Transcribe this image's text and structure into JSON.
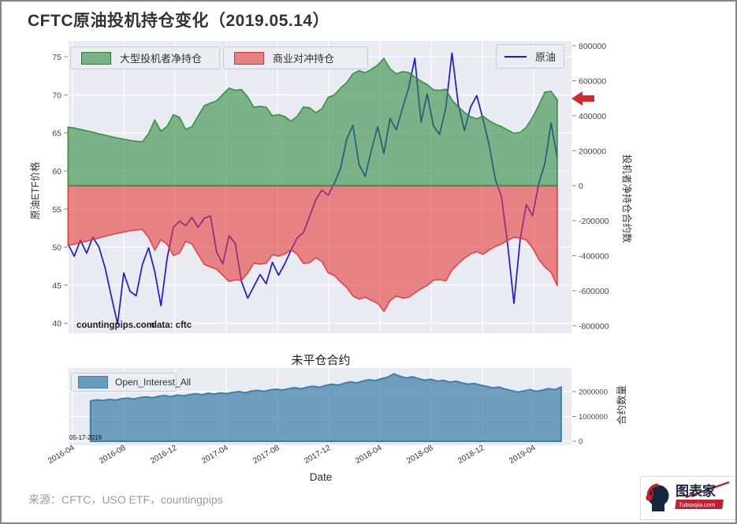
{
  "page": {
    "title": "CFTC原油投机持仓变化（2019.05.14）",
    "source_note": "来源：CFTC，USO ETF，countingpips"
  },
  "logo": {
    "brand": "图表家",
    "site": "Tubiaojia.com"
  },
  "colors": {
    "plot_bg": "#eaeaf2",
    "grid": "#ffffff",
    "spec_green": "#2e8b3e",
    "hedge_red": "#e23b3b",
    "oil_blue": "#1a1ad8",
    "oi_blue": "#3f7fa8",
    "arrow_red": "#d62a2a"
  },
  "chart_data": [
    {
      "id": "main",
      "type": "area+line",
      "x_tick_labels": [
        "2016-04",
        "2016-08",
        "2016-12",
        "2017-04",
        "2017-08",
        "2017-12",
        "2018-04",
        "2018-08",
        "2018-12",
        "2019-04"
      ],
      "x_tick_months": [
        0,
        4,
        8,
        12,
        16,
        20,
        24,
        28,
        32,
        36
      ],
      "left_axis": {
        "label": "原油ETF价格",
        "ticks": [
          75,
          70,
          65,
          60,
          55,
          50,
          45,
          40
        ],
        "range": [
          38.8,
          77.1
        ]
      },
      "right_axis": {
        "label": "投机者净持仓合约数",
        "ticks": [
          800000,
          600000,
          400000,
          200000,
          0,
          -200000,
          -400000,
          -600000,
          -800000
        ],
        "range": [
          -840000,
          830000
        ]
      },
      "annotations": [
        {
          "text": "countingpips.com"
        },
        {
          "text": "data: cftc"
        }
      ],
      "series": [
        {
          "name": "大型投机者净持仓",
          "type": "area",
          "axis": "right",
          "color": "#2e8b3e",
          "x0": -0.35,
          "dx": 0.4835,
          "values": [
            335000,
            330000,
            322000,
            314000,
            306000,
            297000,
            289000,
            280000,
            273000,
            266000,
            259000,
            254000,
            252000,
            298000,
            375000,
            312000,
            340000,
            406000,
            392000,
            322000,
            338000,
            398000,
            458000,
            472000,
            486000,
            522000,
            558000,
            546000,
            550000,
            508000,
            448000,
            454000,
            449000,
            400000,
            407000,
            396000,
            370000,
            397000,
            450000,
            446000,
            417000,
            440000,
            505000,
            520000,
            558000,
            590000,
            640000,
            658000,
            646000,
            666000,
            690000,
            728000,
            668000,
            640000,
            652000,
            648000,
            622000,
            598000,
            578000,
            548000,
            545000,
            552000,
            490000,
            452000,
            420000,
            395000,
            382000,
            398000,
            372000,
            352000,
            338000,
            318000,
            300000,
            305000,
            335000,
            390000,
            460000,
            535000,
            540000,
            492000
          ]
        },
        {
          "name": "商业对冲持仓",
          "type": "area",
          "axis": "right",
          "color": "#e23b3b",
          "x0": -0.35,
          "dx": 0.4835,
          "values": [
            -340000,
            -334000,
            -326000,
            -317000,
            -308000,
            -298000,
            -289000,
            -280000,
            -272000,
            -265000,
            -258000,
            -253000,
            -250000,
            -295000,
            -368000,
            -308000,
            -335000,
            -398000,
            -385000,
            -318000,
            -333000,
            -392000,
            -450000,
            -464000,
            -478000,
            -512000,
            -548000,
            -538000,
            -542000,
            -500000,
            -442000,
            -448000,
            -443000,
            -395000,
            -402000,
            -391000,
            -365000,
            -392000,
            -444000,
            -440000,
            -412000,
            -434000,
            -498000,
            -513000,
            -550000,
            -582000,
            -630000,
            -648000,
            -637000,
            -656000,
            -672000,
            -718000,
            -658000,
            -631000,
            -642000,
            -638000,
            -613000,
            -589000,
            -570000,
            -540000,
            -537000,
            -544000,
            -482000,
            -446000,
            -414000,
            -390000,
            -377000,
            -392000,
            -367000,
            -347000,
            -333000,
            -313000,
            -295000,
            -300000,
            -310000,
            -355000,
            -420000,
            -465000,
            -495000,
            -572000
          ]
        },
        {
          "name": "原油",
          "type": "line",
          "axis": "left",
          "color": "#1a1ad8",
          "x0": -0.35,
          "dx": 0.4835,
          "values": [
            50.4,
            48.8,
            50.9,
            49.2,
            51.3,
            50.0,
            47.2,
            43.5,
            39.9,
            46.6,
            44.2,
            43.6,
            47.7,
            49.9,
            46.8,
            42.3,
            48.5,
            52.6,
            53.4,
            52.8,
            53.9,
            52.6,
            53.8,
            54.1,
            49.3,
            47.8,
            51.5,
            50.5,
            45.5,
            43.3,
            44.8,
            46.4,
            45.2,
            48.0,
            46.3,
            47.8,
            49.6,
            51.2,
            51.9,
            54.0,
            56.2,
            57.5,
            56.8,
            58.4,
            60.3,
            64.2,
            66.0,
            60.8,
            59.3,
            62.8,
            65.8,
            62.3,
            66.9,
            65.4,
            68.2,
            70.9,
            74.8,
            66.4,
            70.1,
            65.9,
            64.8,
            68.3,
            75.5,
            68.8,
            65.3,
            68.4,
            69.9,
            66.8,
            63.4,
            58.9,
            56.6,
            50.2,
            42.6,
            51.0,
            55.6,
            54.1,
            58.3,
            61.0,
            66.3,
            61.7
          ]
        }
      ]
    },
    {
      "id": "open_interest",
      "type": "area",
      "title": "未平仓合约",
      "xlabel": "Date",
      "right_axis": {
        "label": "合约数量",
        "ticks": [
          2000000,
          1000000,
          0
        ]
      },
      "annotation": {
        "text": "05-17-2019"
      },
      "series": [
        {
          "name": "Open_Interest_All",
          "color": "#3f7fa8",
          "x0": 1.4,
          "dx": 0.4835,
          "values_millions": [
            1.63,
            1.67,
            1.64,
            1.69,
            1.66,
            1.71,
            1.74,
            1.7,
            1.76,
            1.79,
            1.75,
            1.81,
            1.84,
            1.8,
            1.86,
            1.83,
            1.88,
            1.91,
            1.87,
            1.93,
            1.9,
            1.95,
            1.92,
            1.97,
            2.0,
            1.96,
            2.02,
            2.05,
            2.01,
            2.07,
            2.1,
            2.06,
            2.12,
            2.16,
            2.11,
            2.18,
            2.22,
            2.17,
            2.25,
            2.3,
            2.26,
            2.34,
            2.39,
            2.35,
            2.43,
            2.48,
            2.44,
            2.52,
            2.58,
            2.72,
            2.62,
            2.55,
            2.6,
            2.52,
            2.46,
            2.5,
            2.42,
            2.45,
            2.38,
            2.42,
            2.35,
            2.3,
            2.33,
            2.26,
            2.21,
            2.15,
            2.18,
            2.1,
            2.04,
            1.98,
            2.03,
            2.08,
            2.01,
            2.06,
            2.12,
            2.08,
            2.18
          ]
        }
      ]
    }
  ]
}
